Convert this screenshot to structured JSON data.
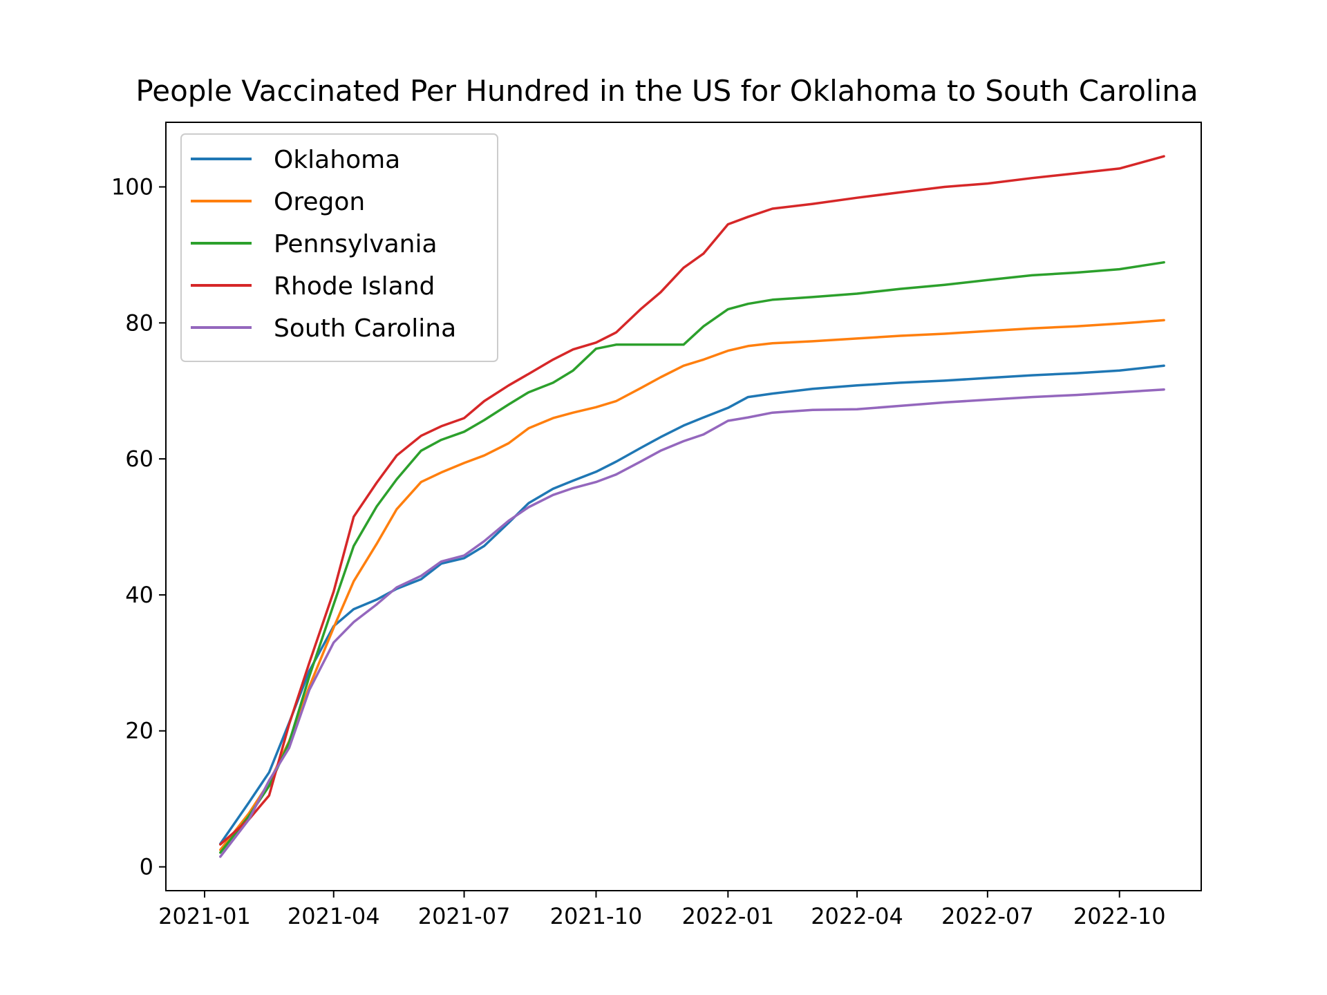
{
  "chart_data": {
    "type": "line",
    "title": "People Vaccinated Per Hundred in the US for Oklahoma to South Carolina",
    "xlabel": "",
    "ylabel": "",
    "x_ticks": [
      "2021-01",
      "2021-04",
      "2021-07",
      "2021-10",
      "2022-01",
      "2022-04",
      "2022-07",
      "2022-10"
    ],
    "y_ticks": [
      0,
      20,
      40,
      60,
      80,
      100
    ],
    "xlim": [
      "2020-12-05",
      "2022-11-27"
    ],
    "ylim": [
      -3.5,
      109.5
    ],
    "grid": false,
    "legend_position": "upper-left",
    "x": [
      "2021-01-12",
      "2021-02-01",
      "2021-02-15",
      "2021-03-01",
      "2021-03-15",
      "2021-04-01",
      "2021-04-15",
      "2021-05-01",
      "2021-05-15",
      "2021-06-01",
      "2021-06-15",
      "2021-07-01",
      "2021-07-15",
      "2021-08-01",
      "2021-08-15",
      "2021-09-01",
      "2021-09-15",
      "2021-10-01",
      "2021-10-15",
      "2021-11-01",
      "2021-11-15",
      "2021-12-01",
      "2021-12-15",
      "2022-01-01",
      "2022-01-15",
      "2022-02-01",
      "2022-03-01",
      "2022-04-01",
      "2022-05-01",
      "2022-06-01",
      "2022-07-01",
      "2022-08-01",
      "2022-09-01",
      "2022-10-01",
      "2022-11-01"
    ],
    "series": [
      {
        "name": "Oklahoma",
        "color": "#1f77b4",
        "values": [
          3.4,
          9.5,
          13.9,
          21.2,
          28.8,
          35.4,
          37.9,
          39.3,
          40.9,
          42.3,
          44.6,
          45.4,
          47.2,
          50.6,
          53.5,
          55.6,
          56.8,
          58.1,
          59.6,
          61.6,
          63.2,
          64.9,
          66.1,
          67.5,
          69.1,
          69.6,
          70.3,
          70.8,
          71.2,
          71.5,
          71.9,
          72.3,
          72.6,
          73.0,
          73.7
        ]
      },
      {
        "name": "Oregon",
        "color": "#ff7f0e",
        "values": [
          2.5,
          7.9,
          12.4,
          18.5,
          26.5,
          35.2,
          42.0,
          47.5,
          52.6,
          56.6,
          58.0,
          59.4,
          60.5,
          62.3,
          64.5,
          66.0,
          66.8,
          67.6,
          68.5,
          70.4,
          72.0,
          73.7,
          74.6,
          75.9,
          76.6,
          77.0,
          77.3,
          77.7,
          78.1,
          78.4,
          78.8,
          79.2,
          79.5,
          79.9,
          80.4
        ]
      },
      {
        "name": "Pennsylvania",
        "color": "#2ca02c",
        "values": [
          2.1,
          7.5,
          11.9,
          18.3,
          28.0,
          38.6,
          47.2,
          53.0,
          57.0,
          61.2,
          62.8,
          64.0,
          65.7,
          68.0,
          69.8,
          71.2,
          73.0,
          76.2,
          76.8,
          76.8,
          76.8,
          76.8,
          79.5,
          82.0,
          82.8,
          83.4,
          83.8,
          84.3,
          85.0,
          85.6,
          86.3,
          87.0,
          87.4,
          87.9,
          88.9
        ]
      },
      {
        "name": "Rhode Island",
        "color": "#d62728",
        "values": [
          3.3,
          7.0,
          10.5,
          21.0,
          30.0,
          40.5,
          51.5,
          56.5,
          60.5,
          63.4,
          64.8,
          66.0,
          68.5,
          70.8,
          72.5,
          74.6,
          76.1,
          77.1,
          78.6,
          82.0,
          84.5,
          88.1,
          90.2,
          94.5,
          95.6,
          96.8,
          97.5,
          98.4,
          99.2,
          100.0,
          100.5,
          101.3,
          102.0,
          102.7,
          104.5
        ]
      },
      {
        "name": "South Carolina",
        "color": "#9467bd",
        "values": [
          1.5,
          7.0,
          12.7,
          17.5,
          26.0,
          33.0,
          36.0,
          38.6,
          41.1,
          42.8,
          44.9,
          45.8,
          47.9,
          50.9,
          52.9,
          54.7,
          55.7,
          56.6,
          57.7,
          59.6,
          61.2,
          62.6,
          63.6,
          65.6,
          66.1,
          66.8,
          67.2,
          67.3,
          67.8,
          68.3,
          68.7,
          69.1,
          69.4,
          69.8,
          70.2
        ]
      }
    ]
  }
}
